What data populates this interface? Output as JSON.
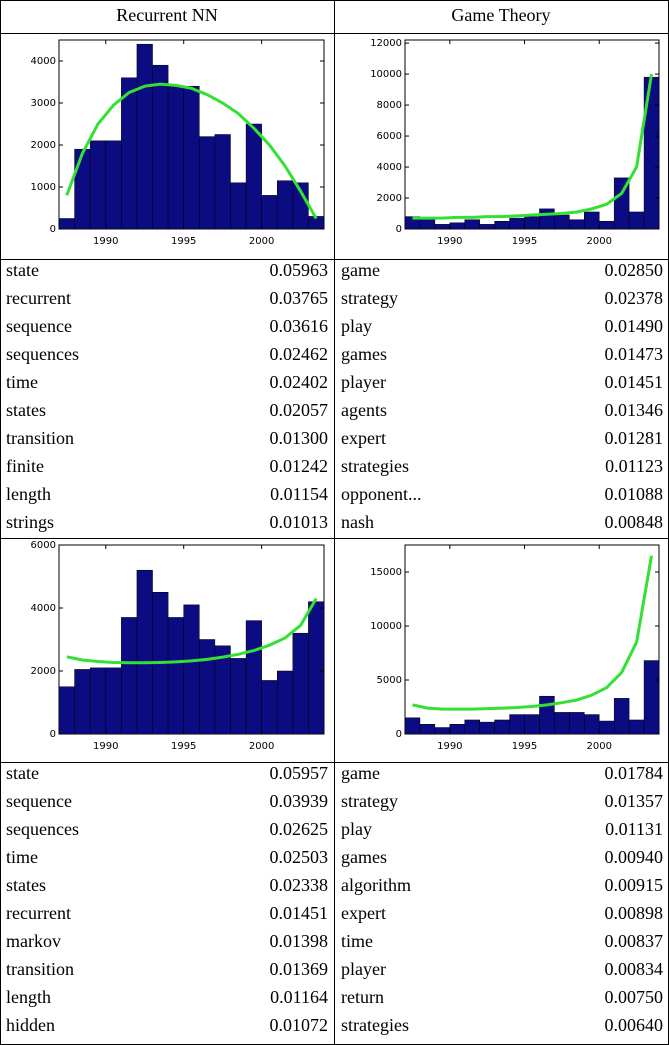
{
  "headers": [
    "Recurrent NN",
    "Game Theory"
  ],
  "chart_data": [
    {
      "type": "histogram",
      "bins": [
        1987,
        1988,
        1989,
        1990,
        1991,
        1992,
        1993,
        1994,
        1995,
        1996,
        1997,
        1998,
        1999,
        2000,
        2001,
        2002,
        2003,
        2004
      ],
      "values": [
        250,
        1900,
        2100,
        2100,
        3600,
        4400,
        3900,
        3400,
        3400,
        2200,
        2250,
        1100,
        2500,
        800,
        1150,
        1100,
        300
      ],
      "color": "#0b0b82",
      "fit_values": [
        800,
        1800,
        2500,
        2950,
        3250,
        3400,
        3450,
        3420,
        3350,
        3200,
        3000,
        2750,
        2400,
        2000,
        1500,
        900,
        250
      ],
      "fit_color": "#33e033",
      "xlim": [
        1987,
        2004
      ],
      "xticks": [
        1990,
        1995,
        2000
      ],
      "ylim": [
        0,
        4500
      ],
      "yticks": [
        0,
        1000,
        2000,
        3000,
        4000
      ]
    },
    {
      "type": "histogram",
      "bins": [
        1987,
        1988,
        1989,
        1990,
        1991,
        1992,
        1993,
        1994,
        1995,
        1996,
        1997,
        1998,
        1999,
        2000,
        2001,
        2002,
        2003,
        2004
      ],
      "values": [
        800,
        700,
        300,
        400,
        600,
        300,
        500,
        700,
        800,
        1300,
        900,
        600,
        1100,
        500,
        3300,
        1100,
        9800
      ],
      "color": "#0b0b82",
      "fit_values": [
        700,
        700,
        700,
        750,
        750,
        800,
        800,
        850,
        900,
        950,
        1000,
        1100,
        1300,
        1600,
        2300,
        4000,
        10000
      ],
      "fit_color": "#33e033",
      "xlim": [
        1987,
        2004
      ],
      "xticks": [
        1990,
        1995,
        2000
      ],
      "ylim": [
        0,
        12200
      ],
      "yticks": [
        0,
        2000,
        4000,
        6000,
        8000,
        10000,
        12000
      ]
    },
    {
      "type": "histogram",
      "bins": [
        1987,
        1988,
        1989,
        1990,
        1991,
        1992,
        1993,
        1994,
        1995,
        1996,
        1997,
        1998,
        1999,
        2000,
        2001,
        2002,
        2003,
        2004
      ],
      "values": [
        1500,
        2050,
        2100,
        2100,
        3700,
        5200,
        4500,
        3700,
        4100,
        3000,
        2800,
        2400,
        3600,
        1700,
        2000,
        3200,
        4200
      ],
      "color": "#0b0b82",
      "fit_values": [
        2450,
        2350,
        2300,
        2270,
        2260,
        2260,
        2270,
        2290,
        2320,
        2370,
        2440,
        2530,
        2650,
        2820,
        3050,
        3450,
        4300
      ],
      "fit_color": "#33e033",
      "xlim": [
        1987,
        2004
      ],
      "xticks": [
        1990,
        1995,
        2000
      ],
      "ylim": [
        0,
        6000
      ],
      "yticks": [
        0,
        2000,
        4000,
        6000
      ]
    },
    {
      "type": "histogram",
      "bins": [
        1987,
        1988,
        1989,
        1990,
        1991,
        1992,
        1993,
        1994,
        1995,
        1996,
        1997,
        1998,
        1999,
        2000,
        2001,
        2002,
        2003,
        2004
      ],
      "values": [
        1500,
        900,
        600,
        900,
        1300,
        1100,
        1300,
        1800,
        1800,
        3500,
        2000,
        2000,
        1800,
        1200,
        3300,
        1300,
        6800
      ],
      "color": "#0b0b82",
      "fit_values": [
        2700,
        2400,
        2300,
        2300,
        2300,
        2350,
        2400,
        2450,
        2550,
        2700,
        2900,
        3150,
        3600,
        4300,
        5700,
        8500,
        16500
      ],
      "fit_color": "#33e033",
      "xlim": [
        1987,
        2004
      ],
      "xticks": [
        1990,
        1995,
        2000
      ],
      "ylim": [
        0,
        17500
      ],
      "yticks": [
        0,
        5000,
        10000,
        15000
      ]
    }
  ],
  "word_tables": [
    {
      "rows": [
        [
          "state",
          "0.05963"
        ],
        [
          "recurrent",
          "0.03765"
        ],
        [
          "sequence",
          "0.03616"
        ],
        [
          "sequences",
          "0.02462"
        ],
        [
          "time",
          "0.02402"
        ],
        [
          "states",
          "0.02057"
        ],
        [
          "transition",
          "0.01300"
        ],
        [
          "finite",
          "0.01242"
        ],
        [
          "length",
          "0.01154"
        ],
        [
          "strings",
          "0.01013"
        ]
      ]
    },
    {
      "rows": [
        [
          "game",
          "0.02850"
        ],
        [
          "strategy",
          "0.02378"
        ],
        [
          "play",
          "0.01490"
        ],
        [
          "games",
          "0.01473"
        ],
        [
          "player",
          "0.01451"
        ],
        [
          "agents",
          "0.01346"
        ],
        [
          "expert",
          "0.01281"
        ],
        [
          "strategies",
          "0.01123"
        ],
        [
          "opponent...",
          "0.01088"
        ],
        [
          "nash",
          "0.00848"
        ]
      ]
    },
    {
      "rows": [
        [
          "state",
          "0.05957"
        ],
        [
          "sequence",
          "0.03939"
        ],
        [
          "sequences",
          "0.02625"
        ],
        [
          "time",
          "0.02503"
        ],
        [
          "states",
          "0.02338"
        ],
        [
          "recurrent",
          "0.01451"
        ],
        [
          "markov",
          "0.01398"
        ],
        [
          "transition",
          "0.01369"
        ],
        [
          "length",
          "0.01164"
        ],
        [
          "hidden",
          "0.01072"
        ]
      ]
    },
    {
      "rows": [
        [
          "game",
          "0.01784"
        ],
        [
          "strategy",
          "0.01357"
        ],
        [
          "play",
          "0.01131"
        ],
        [
          "games",
          "0.00940"
        ],
        [
          "algorithm",
          "0.00915"
        ],
        [
          "expert",
          "0.00898"
        ],
        [
          "time",
          "0.00837"
        ],
        [
          "player",
          "0.00834"
        ],
        [
          "return",
          "0.00750"
        ],
        [
          "strategies",
          "0.00640"
        ]
      ]
    }
  ]
}
